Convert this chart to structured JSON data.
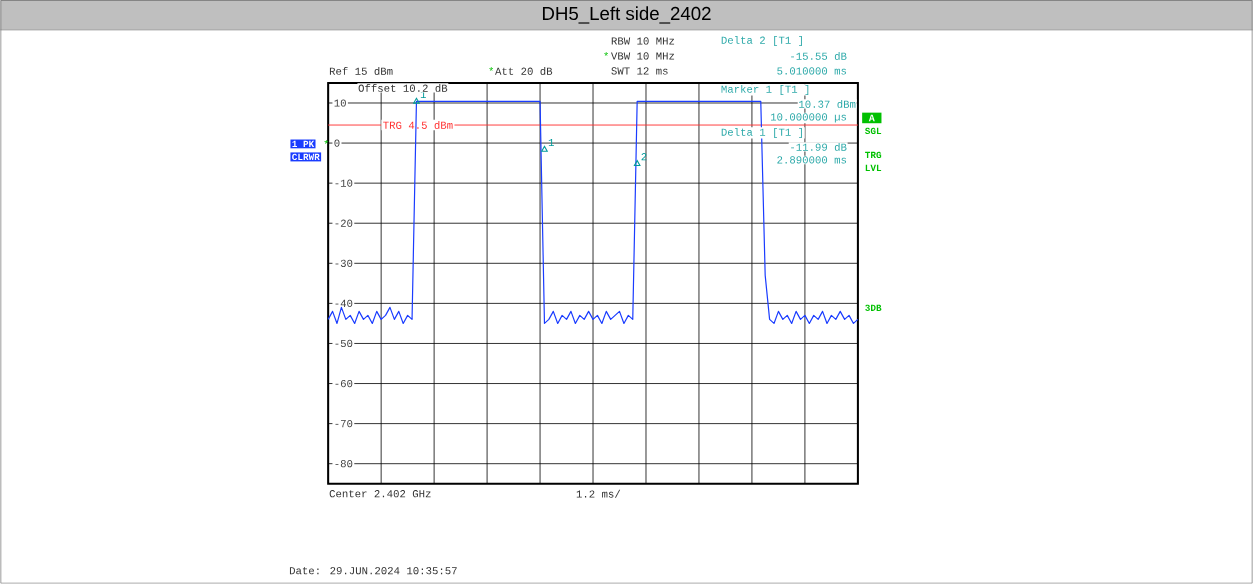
{
  "chart_data": {
    "type": "line",
    "title": "DH5_Left side_2402",
    "categories": [
      null,
      null,
      null,
      null,
      null,
      null,
      null,
      null,
      null,
      null,
      null,
      null,
      null,
      null,
      null,
      null,
      null,
      null,
      null,
      null,
      null,
      null,
      null,
      null,
      null,
      null,
      null,
      null,
      null,
      null,
      null,
      null,
      null,
      null,
      null,
      null,
      null,
      null,
      null,
      null,
      null,
      null,
      null,
      null,
      null,
      null,
      null,
      null,
      null,
      null,
      null,
      null,
      null,
      null,
      null,
      null,
      null,
      null,
      null,
      null,
      null,
      null,
      null,
      null,
      null,
      null,
      null,
      null,
      null,
      null,
      null,
      null,
      null,
      null,
      null,
      null,
      null,
      null,
      null,
      null,
      null,
      null,
      null,
      null,
      null,
      null,
      null,
      null,
      null,
      null,
      null,
      null,
      null,
      null,
      null,
      null,
      null,
      null,
      null,
      null,
      null,
      null,
      null,
      null,
      null,
      null,
      null,
      null,
      null,
      null,
      null,
      null,
      null,
      null,
      null,
      null,
      null,
      null,
      null,
      null,
      null
    ],
    "ylim": [
      -85,
      15
    ],
    "yticks": [
      10,
      0,
      -10,
      -20,
      -30,
      -40,
      -50,
      -60,
      -70,
      -80
    ],
    "grid": true,
    "series": [
      {
        "color": "#1a3cff",
        "values": [
          -44,
          -42,
          -45,
          -41,
          -44,
          -43,
          -45,
          -42,
          -44,
          -43,
          -45,
          -42,
          -44,
          -43,
          -41,
          -44,
          -42,
          -45,
          -43,
          -44,
          10.4,
          10.4,
          10.4,
          10.4,
          10.4,
          10.4,
          10.4,
          10.4,
          10.4,
          10.4,
          10.4,
          10.4,
          10.4,
          10.4,
          10.4,
          10.4,
          10.4,
          10.4,
          10.4,
          10.4,
          10.4,
          10.4,
          10.4,
          10.4,
          10.4,
          10.4,
          10.4,
          10.4,
          10.4,
          -45,
          -44,
          -42,
          -45,
          -43,
          -44,
          -42,
          -45,
          -43,
          -44,
          -42,
          -44,
          -43,
          -45,
          -42,
          -44,
          -43,
          -42,
          -45,
          -43,
          -44,
          10.4,
          10.4,
          10.4,
          10.4,
          10.4,
          10.4,
          10.4,
          10.4,
          10.4,
          10.4,
          10.4,
          10.4,
          10.4,
          10.4,
          10.4,
          10.4,
          10.4,
          10.4,
          10.4,
          10.4,
          10.4,
          10.4,
          10.4,
          10.4,
          10.4,
          10.4,
          10.4,
          10.4,
          10.4,
          -33,
          -44,
          -45,
          -42,
          -44,
          -43,
          -45,
          -42,
          -44,
          -43,
          -45,
          -43,
          -44,
          -42,
          -45,
          -43,
          -44,
          -42,
          -44,
          -43,
          -45,
          -44
        ]
      },
      {
        "type": "scatter",
        "marker": "triangle",
        "color": "#009a9a",
        "values": [
          null,
          null,
          null,
          null,
          null,
          null,
          null,
          null,
          null,
          null,
          null,
          null,
          null,
          null,
          null,
          null,
          null,
          null,
          null,
          null,
          10.37,
          null,
          null,
          null,
          null,
          null,
          null,
          null,
          null,
          null,
          null,
          null,
          null,
          null,
          null,
          null,
          null,
          null,
          null,
          null,
          null,
          null,
          null,
          null,
          null,
          null,
          null,
          null,
          null,
          -1.62,
          null,
          null,
          null,
          null,
          null,
          null,
          null,
          null,
          null,
          null,
          null,
          null,
          null,
          null,
          null,
          null,
          null,
          null,
          null,
          null,
          -5.18,
          null,
          null,
          null,
          null,
          null,
          null,
          null,
          null,
          null,
          null,
          null,
          null,
          null,
          null,
          null,
          null,
          null,
          null,
          null,
          null,
          null,
          null,
          null,
          null,
          null,
          null,
          null,
          null,
          null,
          null,
          null,
          null,
          null,
          null,
          null,
          null,
          null,
          null,
          null,
          null,
          null,
          null,
          null,
          null,
          null,
          null,
          null,
          null,
          null,
          null
        ]
      }
    ],
    "ref_lines": [
      {
        "axis": "y",
        "value": 4.5,
        "label": "TRG 4.5 dBm",
        "color": "#ff3030"
      }
    ],
    "annotations": [
      "Ref 15 dBm",
      "*",
      "Att 20 dB",
      "RBW 10 MHz",
      "*",
      "VBW 10 MHz",
      "SWT 12 ms",
      "Delta 2 [T1 ]",
      "-15.55 dB",
      "5.010000 ms",
      "Offset 10.2 dB",
      "Marker 1 [T1 ]",
      "10.37 dBm",
      "10.000000 µs",
      "Delta 1 [T1 ]",
      "-11.99 dB",
      "2.890000 ms",
      "1 PK",
      "*",
      "CLRWR",
      "A",
      "SGL",
      "TRG",
      "LVL",
      "3DB",
      "Center 2.402 GHz",
      "1.2 ms/",
      "Date: 29.JUN.2024 10:35:57",
      {
        "text": "1",
        "y": 10.37
      },
      {
        "text": "1",
        "y": -1.62
      },
      {
        "text": "2",
        "y": -5.18
      }
    ]
  }
}
